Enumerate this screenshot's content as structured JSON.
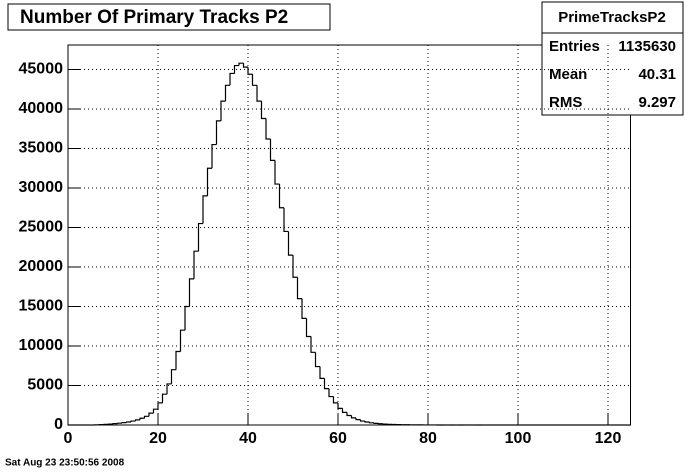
{
  "chart_data": {
    "type": "histogram",
    "title": "Number Of Primary Tracks P2",
    "timestamp": "Sat Aug 23 23:50:56 2008",
    "stats_title": "PrimeTracksP2",
    "stats": [
      {
        "label": "Entries",
        "value": 1135630
      },
      {
        "label": "Mean",
        "value": 40.31
      },
      {
        "label": "RMS",
        "value": 9.297
      }
    ],
    "bins": [
      0,
      1,
      2,
      3,
      4,
      5,
      6,
      7,
      8,
      9,
      10,
      11,
      12,
      13,
      14,
      15,
      16,
      17,
      18,
      19,
      20,
      21,
      22,
      23,
      24,
      25,
      26,
      27,
      28,
      29,
      30,
      31,
      32,
      33,
      34,
      35,
      36,
      37,
      38,
      39,
      40,
      41,
      42,
      43,
      44,
      45,
      46,
      47,
      48,
      49,
      50,
      51,
      52,
      53,
      54,
      55,
      56,
      57,
      58,
      59,
      60,
      61,
      62,
      63,
      64,
      65,
      66,
      67,
      68,
      69,
      70,
      71,
      72,
      73,
      74,
      75,
      76,
      77,
      78,
      79,
      80,
      81,
      82,
      83,
      84,
      85,
      86,
      87,
      88,
      89,
      90,
      91,
      92,
      93,
      94,
      95,
      96,
      97,
      98,
      99,
      100,
      101,
      102,
      103,
      104,
      105,
      106,
      107,
      108,
      109,
      110,
      111,
      112,
      113,
      114,
      115,
      116,
      117,
      118,
      119,
      120,
      121,
      122,
      123,
      124,
      125
    ],
    "counts": [
      0,
      0,
      0,
      0,
      0,
      0,
      20,
      50,
      80,
      120,
      170,
      230,
      300,
      380,
      500,
      650,
      850,
      1100,
      1500,
      2000,
      2800,
      3900,
      5200,
      7000,
      9300,
      12000,
      15000,
      18500,
      22000,
      25500,
      29000,
      32500,
      35500,
      38500,
      41000,
      43000,
      44500,
      45500,
      45800,
      45300,
      44400,
      43000,
      41000,
      38800,
      36200,
      33500,
      30500,
      27500,
      24500,
      21500,
      18700,
      16000,
      13500,
      11200,
      9200,
      7400,
      5900,
      4600,
      3600,
      2800,
      2100,
      1600,
      1200,
      900,
      680,
      500,
      380,
      280,
      210,
      160,
      120,
      90,
      70,
      55,
      40,
      30,
      22,
      16,
      12,
      9,
      7,
      5,
      4,
      3,
      3,
      2,
      2,
      1,
      1,
      1,
      1,
      0,
      0,
      0,
      0,
      0,
      0,
      0,
      0,
      0,
      0,
      0,
      0,
      0,
      0,
      0,
      0,
      0,
      0,
      0,
      0,
      0,
      0,
      0,
      0,
      0,
      0,
      0,
      0,
      0,
      0,
      0,
      0,
      0,
      0
    ],
    "color": "#000000",
    "xlim": [
      0,
      125
    ],
    "ylim": [
      0,
      48100
    ],
    "xticks": [
      0,
      20,
      40,
      60,
      80,
      100,
      120
    ],
    "yticks": [
      0,
      5000,
      10000,
      15000,
      20000,
      25000,
      30000,
      35000,
      40000,
      45000
    ],
    "grid": true
  }
}
